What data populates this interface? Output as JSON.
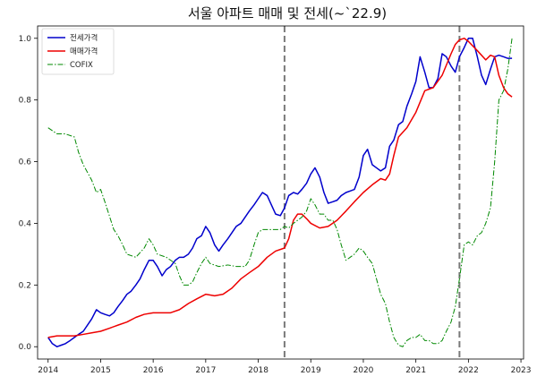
{
  "chart_data": {
    "type": "line",
    "title": "서울 아파트 매매 및 전세(~`22.9)",
    "xlabel": "",
    "ylabel": "",
    "xlim": [
      2013.8,
      2023.05
    ],
    "ylim": [
      -0.04,
      1.04
    ],
    "x_ticks": [
      2014,
      2015,
      2016,
      2017,
      2018,
      2019,
      2020,
      2021,
      2022,
      2023
    ],
    "y_ticks": [
      0.0,
      0.2,
      0.4,
      0.6,
      0.8,
      1.0
    ],
    "x_tick_labels": [
      "2014",
      "2015",
      "2016",
      "2017",
      "2018",
      "2019",
      "2020",
      "2021",
      "2022",
      "2023"
    ],
    "y_tick_labels": [
      "0.0",
      "0.2",
      "0.4",
      "0.6",
      "0.8",
      "1.0"
    ],
    "grid": false,
    "legend_position": "top-left",
    "vertical_lines": [
      2018.5,
      2021.83
    ],
    "series": [
      {
        "name": "전세가격",
        "color": "#0000cc",
        "style": "solid",
        "points": [
          [
            2014.0,
            0.03
          ],
          [
            2014.08,
            0.01
          ],
          [
            2014.17,
            0.0
          ],
          [
            2014.25,
            0.005
          ],
          [
            2014.33,
            0.01
          ],
          [
            2014.42,
            0.02
          ],
          [
            2014.5,
            0.03
          ],
          [
            2014.58,
            0.04
          ],
          [
            2014.67,
            0.05
          ],
          [
            2014.75,
            0.07
          ],
          [
            2014.83,
            0.09
          ],
          [
            2014.92,
            0.12
          ],
          [
            2015.0,
            0.11
          ],
          [
            2015.08,
            0.105
          ],
          [
            2015.17,
            0.1
          ],
          [
            2015.25,
            0.11
          ],
          [
            2015.33,
            0.13
          ],
          [
            2015.42,
            0.15
          ],
          [
            2015.5,
            0.17
          ],
          [
            2015.58,
            0.18
          ],
          [
            2015.67,
            0.2
          ],
          [
            2015.75,
            0.22
          ],
          [
            2015.83,
            0.25
          ],
          [
            2015.92,
            0.28
          ],
          [
            2016.0,
            0.28
          ],
          [
            2016.08,
            0.26
          ],
          [
            2016.17,
            0.23
          ],
          [
            2016.25,
            0.25
          ],
          [
            2016.33,
            0.26
          ],
          [
            2016.42,
            0.28
          ],
          [
            2016.5,
            0.29
          ],
          [
            2016.58,
            0.29
          ],
          [
            2016.67,
            0.3
          ],
          [
            2016.75,
            0.32
          ],
          [
            2016.83,
            0.35
          ],
          [
            2016.92,
            0.36
          ],
          [
            2017.0,
            0.39
          ],
          [
            2017.08,
            0.37
          ],
          [
            2017.17,
            0.33
          ],
          [
            2017.25,
            0.31
          ],
          [
            2017.33,
            0.33
          ],
          [
            2017.42,
            0.35
          ],
          [
            2017.5,
            0.37
          ],
          [
            2017.58,
            0.39
          ],
          [
            2017.67,
            0.4
          ],
          [
            2017.75,
            0.42
          ],
          [
            2017.83,
            0.44
          ],
          [
            2017.92,
            0.46
          ],
          [
            2018.0,
            0.48
          ],
          [
            2018.08,
            0.5
          ],
          [
            2018.17,
            0.49
          ],
          [
            2018.25,
            0.46
          ],
          [
            2018.33,
            0.43
          ],
          [
            2018.42,
            0.425
          ],
          [
            2018.5,
            0.45
          ],
          [
            2018.58,
            0.49
          ],
          [
            2018.67,
            0.5
          ],
          [
            2018.75,
            0.495
          ],
          [
            2018.83,
            0.51
          ],
          [
            2018.92,
            0.53
          ],
          [
            2019.0,
            0.56
          ],
          [
            2019.08,
            0.58
          ],
          [
            2019.17,
            0.55
          ],
          [
            2019.25,
            0.5
          ],
          [
            2019.33,
            0.465
          ],
          [
            2019.42,
            0.47
          ],
          [
            2019.5,
            0.475
          ],
          [
            2019.58,
            0.49
          ],
          [
            2019.67,
            0.5
          ],
          [
            2019.75,
            0.505
          ],
          [
            2019.83,
            0.51
          ],
          [
            2019.92,
            0.55
          ],
          [
            2020.0,
            0.62
          ],
          [
            2020.08,
            0.64
          ],
          [
            2020.17,
            0.59
          ],
          [
            2020.25,
            0.58
          ],
          [
            2020.33,
            0.57
          ],
          [
            2020.42,
            0.58
          ],
          [
            2020.5,
            0.65
          ],
          [
            2020.58,
            0.67
          ],
          [
            2020.67,
            0.72
          ],
          [
            2020.75,
            0.73
          ],
          [
            2020.83,
            0.78
          ],
          [
            2020.92,
            0.82
          ],
          [
            2021.0,
            0.86
          ],
          [
            2021.08,
            0.94
          ],
          [
            2021.17,
            0.89
          ],
          [
            2021.25,
            0.84
          ],
          [
            2021.33,
            0.84
          ],
          [
            2021.42,
            0.87
          ],
          [
            2021.5,
            0.95
          ],
          [
            2021.58,
            0.94
          ],
          [
            2021.67,
            0.91
          ],
          [
            2021.75,
            0.89
          ],
          [
            2021.83,
            0.94
          ],
          [
            2021.92,
            0.97
          ],
          [
            2022.0,
            1.0
          ],
          [
            2022.08,
            1.0
          ],
          [
            2022.17,
            0.94
          ],
          [
            2022.25,
            0.88
          ],
          [
            2022.33,
            0.85
          ],
          [
            2022.42,
            0.9
          ],
          [
            2022.5,
            0.94
          ],
          [
            2022.58,
            0.945
          ],
          [
            2022.67,
            0.94
          ],
          [
            2022.75,
            0.935
          ],
          [
            2022.83,
            0.935
          ]
        ]
      },
      {
        "name": "매매가격",
        "color": "#ee0000",
        "style": "solid",
        "points": [
          [
            2014.0,
            0.03
          ],
          [
            2014.17,
            0.035
          ],
          [
            2014.33,
            0.035
          ],
          [
            2014.5,
            0.035
          ],
          [
            2014.67,
            0.04
          ],
          [
            2014.83,
            0.045
          ],
          [
            2015.0,
            0.05
          ],
          [
            2015.17,
            0.06
          ],
          [
            2015.33,
            0.07
          ],
          [
            2015.5,
            0.08
          ],
          [
            2015.67,
            0.095
          ],
          [
            2015.83,
            0.105
          ],
          [
            2016.0,
            0.11
          ],
          [
            2016.17,
            0.11
          ],
          [
            2016.33,
            0.11
          ],
          [
            2016.5,
            0.12
          ],
          [
            2016.67,
            0.14
          ],
          [
            2016.83,
            0.155
          ],
          [
            2017.0,
            0.17
          ],
          [
            2017.17,
            0.165
          ],
          [
            2017.33,
            0.17
          ],
          [
            2017.5,
            0.19
          ],
          [
            2017.67,
            0.22
          ],
          [
            2017.83,
            0.24
          ],
          [
            2018.0,
            0.26
          ],
          [
            2018.17,
            0.29
          ],
          [
            2018.33,
            0.31
          ],
          [
            2018.5,
            0.32
          ],
          [
            2018.58,
            0.35
          ],
          [
            2018.67,
            0.41
          ],
          [
            2018.75,
            0.43
          ],
          [
            2018.83,
            0.43
          ],
          [
            2018.92,
            0.415
          ],
          [
            2019.0,
            0.4
          ],
          [
            2019.17,
            0.385
          ],
          [
            2019.33,
            0.39
          ],
          [
            2019.5,
            0.41
          ],
          [
            2019.67,
            0.44
          ],
          [
            2019.83,
            0.47
          ],
          [
            2020.0,
            0.5
          ],
          [
            2020.17,
            0.525
          ],
          [
            2020.33,
            0.545
          ],
          [
            2020.42,
            0.54
          ],
          [
            2020.5,
            0.56
          ],
          [
            2020.58,
            0.62
          ],
          [
            2020.67,
            0.68
          ],
          [
            2020.83,
            0.71
          ],
          [
            2021.0,
            0.76
          ],
          [
            2021.17,
            0.83
          ],
          [
            2021.33,
            0.84
          ],
          [
            2021.5,
            0.88
          ],
          [
            2021.67,
            0.95
          ],
          [
            2021.75,
            0.98
          ],
          [
            2021.83,
            0.995
          ],
          [
            2021.92,
            1.0
          ],
          [
            2022.0,
            0.99
          ],
          [
            2022.17,
            0.96
          ],
          [
            2022.33,
            0.93
          ],
          [
            2022.42,
            0.945
          ],
          [
            2022.5,
            0.94
          ],
          [
            2022.58,
            0.88
          ],
          [
            2022.67,
            0.84
          ],
          [
            2022.75,
            0.82
          ],
          [
            2022.83,
            0.81
          ]
        ]
      },
      {
        "name": "COFIX",
        "color": "#008800",
        "style": "dashdot",
        "points": [
          [
            2014.0,
            0.71
          ],
          [
            2014.17,
            0.69
          ],
          [
            2014.33,
            0.69
          ],
          [
            2014.5,
            0.68
          ],
          [
            2014.58,
            0.63
          ],
          [
            2014.67,
            0.59
          ],
          [
            2014.83,
            0.54
          ],
          [
            2014.92,
            0.5
          ],
          [
            2015.0,
            0.51
          ],
          [
            2015.08,
            0.47
          ],
          [
            2015.25,
            0.38
          ],
          [
            2015.33,
            0.36
          ],
          [
            2015.42,
            0.33
          ],
          [
            2015.5,
            0.3
          ],
          [
            2015.67,
            0.29
          ],
          [
            2015.83,
            0.32
          ],
          [
            2015.92,
            0.35
          ],
          [
            2016.0,
            0.33
          ],
          [
            2016.08,
            0.3
          ],
          [
            2016.25,
            0.29
          ],
          [
            2016.42,
            0.27
          ],
          [
            2016.5,
            0.23
          ],
          [
            2016.58,
            0.2
          ],
          [
            2016.67,
            0.2
          ],
          [
            2016.75,
            0.21
          ],
          [
            2016.83,
            0.24
          ],
          [
            2016.92,
            0.27
          ],
          [
            2017.0,
            0.29
          ],
          [
            2017.08,
            0.27
          ],
          [
            2017.25,
            0.26
          ],
          [
            2017.42,
            0.265
          ],
          [
            2017.58,
            0.26
          ],
          [
            2017.75,
            0.26
          ],
          [
            2017.83,
            0.28
          ],
          [
            2017.92,
            0.33
          ],
          [
            2018.0,
            0.37
          ],
          [
            2018.08,
            0.38
          ],
          [
            2018.25,
            0.38
          ],
          [
            2018.42,
            0.38
          ],
          [
            2018.5,
            0.39
          ],
          [
            2018.58,
            0.385
          ],
          [
            2018.67,
            0.4
          ],
          [
            2018.83,
            0.42
          ],
          [
            2018.92,
            0.44
          ],
          [
            2019.0,
            0.48
          ],
          [
            2019.08,
            0.46
          ],
          [
            2019.17,
            0.43
          ],
          [
            2019.25,
            0.43
          ],
          [
            2019.33,
            0.41
          ],
          [
            2019.42,
            0.41
          ],
          [
            2019.5,
            0.38
          ],
          [
            2019.58,
            0.33
          ],
          [
            2019.67,
            0.28
          ],
          [
            2019.75,
            0.29
          ],
          [
            2019.83,
            0.3
          ],
          [
            2019.92,
            0.32
          ],
          [
            2020.0,
            0.31
          ],
          [
            2020.08,
            0.29
          ],
          [
            2020.17,
            0.27
          ],
          [
            2020.25,
            0.22
          ],
          [
            2020.33,
            0.17
          ],
          [
            2020.42,
            0.14
          ],
          [
            2020.5,
            0.08
          ],
          [
            2020.58,
            0.03
          ],
          [
            2020.67,
            0.005
          ],
          [
            2020.75,
            0.0
          ],
          [
            2020.83,
            0.02
          ],
          [
            2020.92,
            0.03
          ],
          [
            2021.0,
            0.03
          ],
          [
            2021.08,
            0.04
          ],
          [
            2021.17,
            0.02
          ],
          [
            2021.25,
            0.02
          ],
          [
            2021.33,
            0.01
          ],
          [
            2021.42,
            0.01
          ],
          [
            2021.5,
            0.02
          ],
          [
            2021.58,
            0.05
          ],
          [
            2021.67,
            0.08
          ],
          [
            2021.75,
            0.13
          ],
          [
            2021.83,
            0.22
          ],
          [
            2021.92,
            0.33
          ],
          [
            2022.0,
            0.34
          ],
          [
            2022.08,
            0.33
          ],
          [
            2022.17,
            0.36
          ],
          [
            2022.25,
            0.37
          ],
          [
            2022.33,
            0.4
          ],
          [
            2022.42,
            0.45
          ],
          [
            2022.5,
            0.6
          ],
          [
            2022.58,
            0.8
          ],
          [
            2022.67,
            0.83
          ],
          [
            2022.75,
            0.9
          ],
          [
            2022.83,
            1.0
          ]
        ]
      }
    ]
  }
}
